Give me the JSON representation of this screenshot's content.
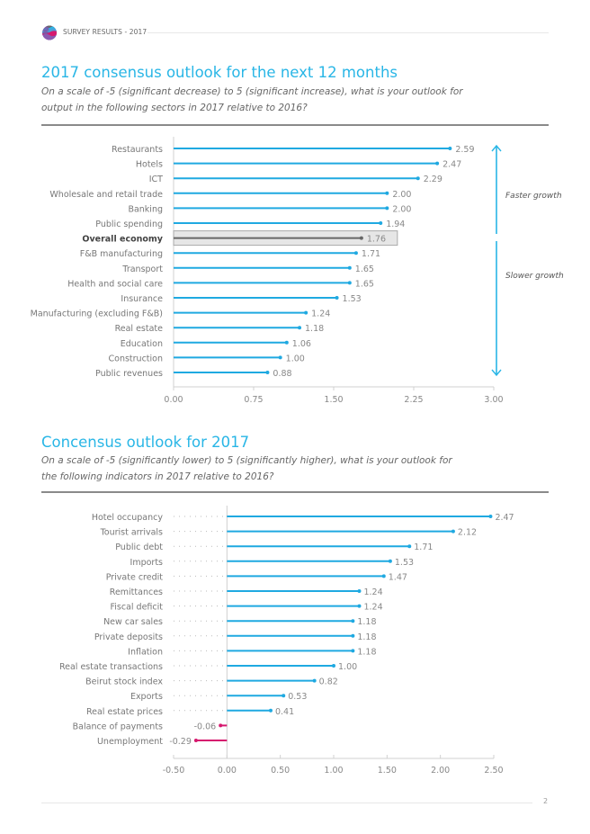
{
  "header": {
    "logo_icon": "survey-globe-logo",
    "title": "SURVEY RESULTS - 2017"
  },
  "sections": [
    {
      "title": "2017 consensus outlook for the next 12 months",
      "subtitle_line1": "On a scale of -5 (significant decrease) to 5 (significant increase), what is your outlook for",
      "subtitle_line2": "output in the following sectors in 2017 relative to 2016?"
    },
    {
      "title": "Concensus outlook for 2017",
      "subtitle_line1": "On a scale of -5 (significantly lower) to 5 (significantly higher), what is your outlook for",
      "subtitle_line2": "the following indicators in 2017 relative to 2016?"
    }
  ],
  "footer": {
    "page_number": "2"
  },
  "colors": {
    "accent": "#29b6e6",
    "bar": "#1fa9e1",
    "highlight_bar": "#666666",
    "highlight_bg": "#e6e6e6",
    "negative": "#d6186e",
    "label": "#777777"
  },
  "chart_data": [
    {
      "type": "bar",
      "orientation": "horizontal",
      "style": "lollipop",
      "title": "2017 consensus outlook for the next 12 months",
      "categories": [
        "Restaurants",
        "Hotels",
        "ICT",
        "Wholesale and retail trade",
        "Banking",
        "Public spending",
        "Overall economy",
        "F&B manufacturing",
        "Transport",
        "Health and social care",
        "Insurance",
        "Manufacturing (excluding F&B)",
        "Real estate",
        "Education",
        "Construction",
        "Public revenues"
      ],
      "values": [
        2.59,
        2.47,
        2.29,
        2.0,
        2.0,
        1.94,
        1.76,
        1.71,
        1.65,
        1.65,
        1.53,
        1.24,
        1.18,
        1.06,
        1.0,
        0.88
      ],
      "value_labels": [
        "2.59",
        "2.47",
        "2.29",
        "2.00",
        "2.00",
        "1.94",
        "1.76",
        "1.71",
        "1.65",
        "1.65",
        "1.53",
        "1.24",
        "1.18",
        "1.06",
        "1.00",
        "0.88"
      ],
      "highlight": "Overall economy",
      "xlim": [
        0,
        3.0
      ],
      "xticks": [
        "0.00",
        "0.75",
        "1.50",
        "2.25",
        "3.00"
      ],
      "xtick_values": [
        0,
        0.75,
        1.5,
        2.25,
        3.0
      ],
      "annotations": {
        "up_label": "Faster growth",
        "down_label": "Slower growth"
      },
      "xlabel": "",
      "ylabel": "",
      "grid": false
    },
    {
      "type": "bar",
      "orientation": "horizontal",
      "style": "lollipop",
      "title": "Concensus outlook for 2017",
      "categories": [
        "Hotel occupancy",
        "Tourist arrivals",
        "Public debt",
        "Imports",
        "Private credit",
        "Remittances",
        "Fiscal deficit",
        "New car sales",
        "Private deposits",
        "Inflation",
        "Real estate transactions",
        "Beirut stock index",
        "Exports",
        "Real estate prices",
        "Balance of payments",
        "Unemployment"
      ],
      "values": [
        2.47,
        2.12,
        1.71,
        1.53,
        1.47,
        1.24,
        1.24,
        1.18,
        1.18,
        1.18,
        1.0,
        0.82,
        0.53,
        0.41,
        -0.06,
        -0.29
      ],
      "value_labels": [
        "2.47",
        "2.12",
        "1.71",
        "1.53",
        "1.47",
        "1.24",
        "1.24",
        "1.18",
        "1.18",
        "1.18",
        "1.00",
        "0.82",
        "0.53",
        "0.41",
        "-0.06",
        "-0.29"
      ],
      "xlim": [
        -0.5,
        2.5
      ],
      "xticks": [
        "-0.50",
        "0.00",
        "0.50",
        "1.00",
        "1.50",
        "2.00",
        "2.50"
      ],
      "xtick_values": [
        -0.5,
        0,
        0.5,
        1.0,
        1.5,
        2.0,
        2.5
      ],
      "xlabel": "",
      "ylabel": "",
      "grid": false
    }
  ]
}
